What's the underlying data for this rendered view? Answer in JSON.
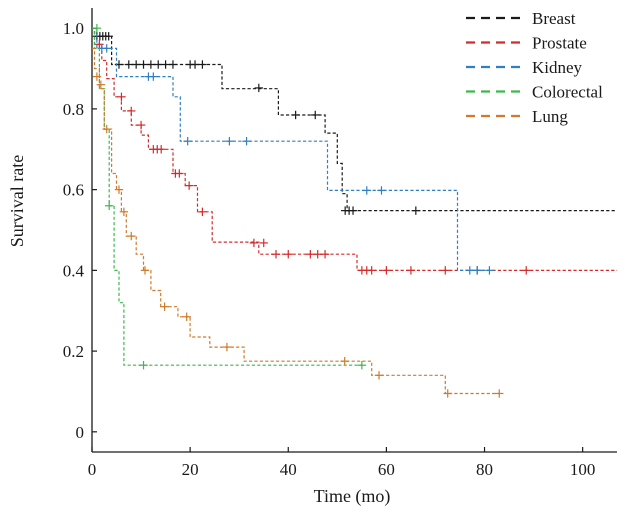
{
  "chart_data": {
    "type": "line",
    "subtype": "kaplan-meier-step",
    "xlabel": "Time (mo)",
    "ylabel": "Survival rate",
    "xlim": [
      0,
      107
    ],
    "ylim": [
      -0.05,
      1.05
    ],
    "x_ticks": [
      0,
      20,
      40,
      60,
      80,
      100
    ],
    "y_ticks": [
      0,
      0.2,
      0.4,
      0.6,
      0.8,
      1.0
    ],
    "x_tick_labels": [
      "0",
      "20",
      "40",
      "60",
      "80",
      "100"
    ],
    "y_tick_labels": [
      "0",
      "0.2",
      "0.4",
      "0.6",
      "0.8",
      "1.0"
    ],
    "legend_position": "top-right",
    "series": [
      {
        "name": "Breast",
        "color": "#1a1a1a",
        "steps": [
          [
            0,
            1.0
          ],
          [
            0.5,
            0.98
          ],
          [
            4,
            0.91
          ],
          [
            26.5,
            0.85
          ],
          [
            38,
            0.785
          ],
          [
            47.5,
            0.74
          ],
          [
            50,
            0.665
          ],
          [
            51,
            0.59
          ],
          [
            52,
            0.548
          ],
          [
            107,
            0.548
          ]
        ],
        "censored": [
          [
            1,
            0.98
          ],
          [
            1.6,
            0.98
          ],
          [
            2.2,
            0.98
          ],
          [
            2.8,
            0.98
          ],
          [
            3.4,
            0.98
          ],
          [
            5.5,
            0.91
          ],
          [
            7.5,
            0.91
          ],
          [
            9,
            0.91
          ],
          [
            10.5,
            0.91
          ],
          [
            12,
            0.91
          ],
          [
            13.5,
            0.91
          ],
          [
            15,
            0.91
          ],
          [
            16.5,
            0.91
          ],
          [
            20,
            0.91
          ],
          [
            21,
            0.91
          ],
          [
            22.5,
            0.91
          ],
          [
            34,
            0.852
          ],
          [
            41.5,
            0.785
          ],
          [
            45.5,
            0.785
          ],
          [
            51.6,
            0.548
          ],
          [
            52.4,
            0.548
          ],
          [
            53.2,
            0.548
          ],
          [
            66,
            0.548
          ]
        ]
      },
      {
        "name": "Prostate",
        "color": "#d62a2a",
        "steps": [
          [
            0,
            1.0
          ],
          [
            0.5,
            0.96
          ],
          [
            2,
            0.92
          ],
          [
            3,
            0.875
          ],
          [
            4.5,
            0.83
          ],
          [
            6,
            0.795
          ],
          [
            8,
            0.76
          ],
          [
            10,
            0.735
          ],
          [
            11.5,
            0.7
          ],
          [
            16.5,
            0.64
          ],
          [
            19,
            0.61
          ],
          [
            21.5,
            0.545
          ],
          [
            24.5,
            0.47
          ],
          [
            34,
            0.44
          ],
          [
            54,
            0.4
          ],
          [
            107,
            0.4
          ]
        ],
        "censored": [
          [
            1.5,
            0.96
          ],
          [
            6,
            0.83
          ],
          [
            8,
            0.795
          ],
          [
            10,
            0.76
          ],
          [
            12.5,
            0.7
          ],
          [
            13.3,
            0.7
          ],
          [
            14.1,
            0.7
          ],
          [
            17,
            0.64
          ],
          [
            17.8,
            0.64
          ],
          [
            19.8,
            0.61
          ],
          [
            22.5,
            0.545
          ],
          [
            33,
            0.468
          ],
          [
            35,
            0.468
          ],
          [
            37.5,
            0.44
          ],
          [
            40,
            0.44
          ],
          [
            44.5,
            0.44
          ],
          [
            46,
            0.44
          ],
          [
            47.5,
            0.44
          ],
          [
            55,
            0.4
          ],
          [
            56,
            0.4
          ],
          [
            57,
            0.4
          ],
          [
            60,
            0.4
          ],
          [
            65,
            0.4
          ],
          [
            72,
            0.4
          ],
          [
            78.5,
            0.4
          ],
          [
            88.5,
            0.4
          ]
        ]
      },
      {
        "name": "Kidney",
        "color": "#2f7fc1",
        "steps": [
          [
            0,
            1.0
          ],
          [
            1,
            0.95
          ],
          [
            5,
            0.88
          ],
          [
            16.5,
            0.83
          ],
          [
            18,
            0.72
          ],
          [
            48,
            0.598
          ],
          [
            74.5,
            0.4
          ],
          [
            82,
            0.4
          ]
        ],
        "censored": [
          [
            2,
            0.95
          ],
          [
            3,
            0.95
          ],
          [
            11.5,
            0.88
          ],
          [
            12.5,
            0.88
          ],
          [
            19.5,
            0.72
          ],
          [
            28,
            0.72
          ],
          [
            31.5,
            0.72
          ],
          [
            56,
            0.598
          ],
          [
            59,
            0.598
          ],
          [
            77,
            0.4
          ],
          [
            78.5,
            0.4
          ],
          [
            81,
            0.4
          ]
        ]
      },
      {
        "name": "Colorectal",
        "color": "#3cb94a",
        "steps": [
          [
            0,
            1.0
          ],
          [
            0.5,
            0.95
          ],
          [
            1.5,
            0.85
          ],
          [
            2.5,
            0.75
          ],
          [
            3.5,
            0.56
          ],
          [
            4.5,
            0.4
          ],
          [
            5.5,
            0.32
          ],
          [
            6.5,
            0.165
          ],
          [
            55,
            0.165
          ]
        ],
        "censored": [
          [
            1,
            1.0
          ],
          [
            3.5,
            0.56
          ],
          [
            10.5,
            0.165
          ],
          [
            55,
            0.165
          ]
        ]
      },
      {
        "name": "Lung",
        "color": "#d07a2a",
        "steps": [
          [
            0,
            0.95
          ],
          [
            0.5,
            0.9
          ],
          [
            1.5,
            0.85
          ],
          [
            2.5,
            0.75
          ],
          [
            4,
            0.64
          ],
          [
            5,
            0.6
          ],
          [
            6,
            0.545
          ],
          [
            7,
            0.485
          ],
          [
            9,
            0.44
          ],
          [
            10.5,
            0.4
          ],
          [
            12,
            0.35
          ],
          [
            14,
            0.31
          ],
          [
            17.5,
            0.285
          ],
          [
            20,
            0.235
          ],
          [
            24,
            0.21
          ],
          [
            31,
            0.175
          ],
          [
            57,
            0.14
          ],
          [
            72,
            0.095
          ],
          [
            83,
            0.095
          ]
        ],
        "censored": [
          [
            1,
            0.88
          ],
          [
            1.8,
            0.86
          ],
          [
            3,
            0.75
          ],
          [
            5.5,
            0.6
          ],
          [
            6.5,
            0.545
          ],
          [
            8,
            0.485
          ],
          [
            10.8,
            0.4
          ],
          [
            14.8,
            0.31
          ],
          [
            19.3,
            0.285
          ],
          [
            27.5,
            0.21
          ],
          [
            51.5,
            0.175
          ],
          [
            58.5,
            0.14
          ],
          [
            72.5,
            0.095
          ],
          [
            83,
            0.095
          ]
        ]
      }
    ]
  }
}
